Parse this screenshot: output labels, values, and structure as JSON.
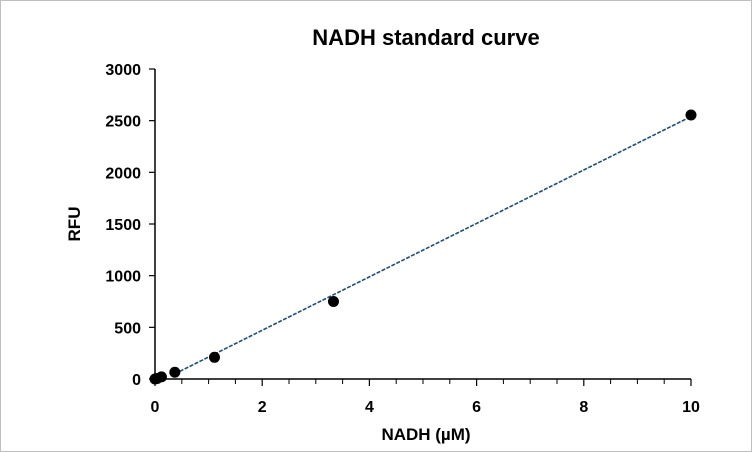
{
  "chart_data": {
    "type": "scatter",
    "title": "NADH standard curve",
    "xlabel": "NADH (µM)",
    "ylabel": "RFU",
    "xlim": [
      0,
      10
    ],
    "ylim": [
      0,
      3000
    ],
    "x_ticks": [
      "0",
      "2",
      "4",
      "6",
      "8",
      "10"
    ],
    "y_ticks": [
      "0",
      "500",
      "1000",
      "1500",
      "2000",
      "2500",
      "3000"
    ],
    "grid": false,
    "legend": "none",
    "series": [
      {
        "x": [
          0,
          0.04,
          0.12,
          0.37,
          1.11,
          3.33,
          10
        ],
        "y": [
          0,
          5,
          20,
          65,
          210,
          750,
          2555
        ]
      }
    ],
    "trendline": {
      "style": "linear",
      "x": [
        0.37,
        10
      ],
      "y": [
        50,
        2540
      ]
    },
    "colors": {
      "marker": "#000000",
      "trendline": "#1f4e79"
    }
  }
}
